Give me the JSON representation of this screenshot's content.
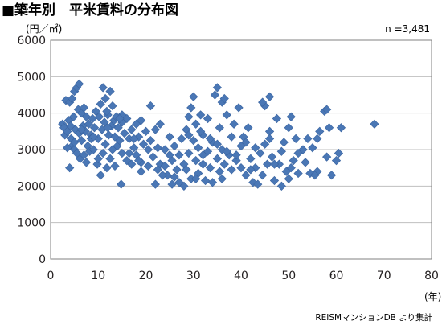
{
  "chart_data": {
    "type": "scatter",
    "title": "■築年別　平米賃料の分布図",
    "y_unit_label": "(円／㎡)",
    "x_unit_label": "(年)",
    "sample_label": "n =3,481",
    "source_label": "REISMマンションDB より集計",
    "xlim": [
      0,
      80
    ],
    "ylim": [
      0,
      6000
    ],
    "x_ticks": [
      0,
      10,
      20,
      30,
      40,
      50,
      60,
      70,
      80
    ],
    "y_ticks": [
      0,
      1000,
      2000,
      3000,
      4000,
      5000,
      6000
    ],
    "x_tick_labels": [
      "0",
      "10",
      "20",
      "30",
      "40",
      "50",
      "60",
      "70",
      "80"
    ],
    "y_tick_labels": [
      "0",
      "1000",
      "2000",
      "3000",
      "4000",
      "5000",
      "6000"
    ],
    "grid": "horizontal",
    "marker": "diamond",
    "colors": {
      "marker_fill": "#4a77b5",
      "marker_stroke": "#3a64a0",
      "grid": "#bfbfbf",
      "axis": "#808080",
      "text": "#231f20"
    },
    "series": [
      {
        "points": [
          [
            2.5,
            3700
          ],
          [
            2.8,
            3600
          ],
          [
            3.0,
            3400
          ],
          [
            3.2,
            4350
          ],
          [
            3.5,
            3500
          ],
          [
            3.8,
            3800
          ],
          [
            4.0,
            4300
          ],
          [
            4.0,
            2500
          ],
          [
            4.3,
            3300
          ],
          [
            4.5,
            4400
          ],
          [
            4.5,
            3100
          ],
          [
            4.8,
            3900
          ],
          [
            5.0,
            4600
          ],
          [
            5.0,
            3000
          ],
          [
            5.2,
            3550
          ],
          [
            5.5,
            4700
          ],
          [
            5.5,
            2900
          ],
          [
            5.8,
            4100
          ],
          [
            6.0,
            4800
          ],
          [
            6.0,
            3450
          ],
          [
            6.2,
            2750
          ],
          [
            6.5,
            4000
          ],
          [
            6.5,
            3250
          ],
          [
            6.8,
            3650
          ],
          [
            7.0,
            4150
          ],
          [
            7.0,
            2850
          ],
          [
            7.3,
            3500
          ],
          [
            7.5,
            3900
          ],
          [
            7.8,
            3100
          ],
          [
            8.0,
            3700
          ],
          [
            8.2,
            2950
          ],
          [
            8.5,
            3400
          ],
          [
            8.8,
            3850
          ],
          [
            9.0,
            3000
          ],
          [
            9.2,
            3600
          ],
          [
            9.5,
            4050
          ],
          [
            9.8,
            2600
          ],
          [
            10.0,
            3300
          ],
          [
            10.2,
            3900
          ],
          [
            10.5,
            4250
          ],
          [
            10.5,
            2300
          ],
          [
            10.8,
            3550
          ],
          [
            11.0,
            4700
          ],
          [
            11.0,
            2900
          ],
          [
            11.3,
            3750
          ],
          [
            11.5,
            4400
          ],
          [
            11.5,
            3150
          ],
          [
            11.8,
            2500
          ],
          [
            12.0,
            3950
          ],
          [
            12.2,
            3400
          ],
          [
            12.5,
            4600
          ],
          [
            12.5,
            2750
          ],
          [
            12.8,
            3650
          ],
          [
            13.0,
            4200
          ],
          [
            13.0,
            3000
          ],
          [
            13.3,
            3800
          ],
          [
            13.5,
            3350
          ],
          [
            13.5,
            2550
          ],
          [
            13.8,
            3900
          ],
          [
            14.0,
            3100
          ],
          [
            14.2,
            3600
          ],
          [
            14.5,
            3250
          ],
          [
            14.8,
            2050
          ],
          [
            15.0,
            3750
          ],
          [
            15.0,
            2900
          ],
          [
            15.5,
            3450
          ],
          [
            16.0,
            3850
          ],
          [
            16.0,
            2700
          ],
          [
            16.5,
            3300
          ],
          [
            17.0,
            3550
          ],
          [
            17.0,
            2600
          ],
          [
            17.5,
            3050
          ],
          [
            18.0,
            3700
          ],
          [
            18.0,
            2850
          ],
          [
            18.5,
            3350
          ],
          [
            19.0,
            3800
          ],
          [
            19.0,
            2650
          ],
          [
            19.5,
            3150
          ],
          [
            20.0,
            3500
          ],
          [
            20.5,
            2550
          ],
          [
            21.0,
            4200
          ],
          [
            21.0,
            3250
          ],
          [
            21.5,
            2800
          ],
          [
            22.0,
            3550
          ],
          [
            22.0,
            2050
          ],
          [
            22.5,
            3050
          ],
          [
            23.0,
            3700
          ],
          [
            23.0,
            2600
          ],
          [
            24.0,
            3000
          ],
          [
            24.5,
            2300
          ],
          [
            25.0,
            3350
          ],
          [
            25.5,
            2050
          ],
          [
            25.5,
            2700
          ],
          [
            26.0,
            3100
          ],
          [
            26.5,
            2450
          ],
          [
            27.0,
            2850
          ],
          [
            27.5,
            3300
          ],
          [
            28.0,
            2000
          ],
          [
            28.0,
            2600
          ],
          [
            28.5,
            3550
          ],
          [
            29.0,
            2900
          ],
          [
            29.0,
            3900
          ],
          [
            29.5,
            2200
          ],
          [
            29.5,
            4150
          ],
          [
            30.0,
            3250
          ],
          [
            30.0,
            4450
          ],
          [
            30.5,
            2700
          ],
          [
            30.5,
            3700
          ],
          [
            31.0,
            2350
          ],
          [
            31.0,
            3050
          ],
          [
            31.5,
            3950
          ],
          [
            32.0,
            2600
          ],
          [
            32.0,
            3400
          ],
          [
            32.5,
            2150
          ],
          [
            33.0,
            2950
          ],
          [
            33.0,
            3850
          ],
          [
            33.5,
            2500
          ],
          [
            34.0,
            3200
          ],
          [
            34.0,
            2100
          ],
          [
            34.5,
            4500
          ],
          [
            35.0,
            2750
          ],
          [
            35.0,
            4700
          ],
          [
            35.5,
            3600
          ],
          [
            35.5,
            2400
          ],
          [
            36.0,
            4300
          ],
          [
            36.0,
            3000
          ],
          [
            36.5,
            2600
          ],
          [
            37.0,
            3950
          ],
          [
            37.5,
            2850
          ],
          [
            38.0,
            3350
          ],
          [
            38.0,
            2450
          ],
          [
            38.5,
            3700
          ],
          [
            39.0,
            2700
          ],
          [
            39.5,
            4150
          ],
          [
            40.0,
            3100
          ],
          [
            40.0,
            2500
          ],
          [
            40.5,
            3350
          ],
          [
            41.0,
            2300
          ],
          [
            41.5,
            3600
          ],
          [
            42.0,
            2750
          ],
          [
            42.5,
            2100
          ],
          [
            43.0,
            3050
          ],
          [
            43.0,
            2500
          ],
          [
            43.5,
            2050
          ],
          [
            44.0,
            2900
          ],
          [
            44.5,
            2300
          ],
          [
            45.0,
            3150
          ],
          [
            45.0,
            4200
          ],
          [
            45.5,
            2600
          ],
          [
            46.0,
            4450
          ],
          [
            46.0,
            3500
          ],
          [
            46.5,
            2800
          ],
          [
            47.0,
            2150
          ],
          [
            47.5,
            3850
          ],
          [
            48.0,
            2600
          ],
          [
            48.5,
            2000
          ],
          [
            49.0,
            3200
          ],
          [
            49.5,
            2400
          ],
          [
            50.0,
            3600
          ],
          [
            50.0,
            2200
          ],
          [
            50.5,
            3900
          ],
          [
            51.0,
            2700
          ],
          [
            51.5,
            3300
          ],
          [
            52.0,
            2900
          ],
          [
            53.0,
            3000
          ],
          [
            54.0,
            3300
          ],
          [
            54.5,
            2350
          ],
          [
            55.0,
            3050
          ],
          [
            56.0,
            2400
          ],
          [
            56.5,
            3500
          ],
          [
            57.5,
            4050
          ],
          [
            58.0,
            2800
          ],
          [
            58.5,
            3600
          ],
          [
            59.0,
            2300
          ],
          [
            60.0,
            2700
          ],
          [
            60.5,
            2900
          ],
          [
            61.0,
            3600
          ],
          [
            68.0,
            3700
          ],
          [
            36.5,
            4400
          ],
          [
            44.5,
            4300
          ],
          [
            56.0,
            3300
          ],
          [
            58.0,
            4100
          ],
          [
            53.5,
            2650
          ],
          [
            55.5,
            2300
          ],
          [
            46.0,
            3300
          ],
          [
            39.0,
            2850
          ],
          [
            30.5,
            2200
          ],
          [
            27.0,
            2100
          ],
          [
            23.5,
            2300
          ],
          [
            19.0,
            2400
          ],
          [
            15.0,
            3950
          ],
          [
            12.0,
            3600
          ],
          [
            8.5,
            3300
          ],
          [
            6.5,
            3550
          ],
          [
            5.0,
            3200
          ],
          [
            4.2,
            3650
          ],
          [
            9.0,
            3350
          ],
          [
            11.8,
            4050
          ],
          [
            14.5,
            3850
          ],
          [
            17.5,
            3300
          ],
          [
            20.5,
            3000
          ],
          [
            25.0,
            2850
          ],
          [
            29.0,
            3400
          ],
          [
            31.5,
            3500
          ],
          [
            33.5,
            3300
          ],
          [
            35.0,
            3150
          ],
          [
            37.0,
            2950
          ],
          [
            41.0,
            3200
          ],
          [
            42.0,
            2450
          ],
          [
            47.0,
            2600
          ],
          [
            48.5,
            2950
          ],
          [
            50.5,
            2500
          ],
          [
            52.0,
            2350
          ],
          [
            36.0,
            2200
          ],
          [
            32.0,
            2850
          ],
          [
            28.5,
            2450
          ],
          [
            26.0,
            2250
          ],
          [
            24.0,
            2550
          ],
          [
            22.5,
            2450
          ],
          [
            18.5,
            2700
          ],
          [
            16.5,
            2900
          ],
          [
            10.0,
            2750
          ],
          [
            7.5,
            2650
          ],
          [
            3.5,
            3050
          ]
        ]
      }
    ]
  }
}
